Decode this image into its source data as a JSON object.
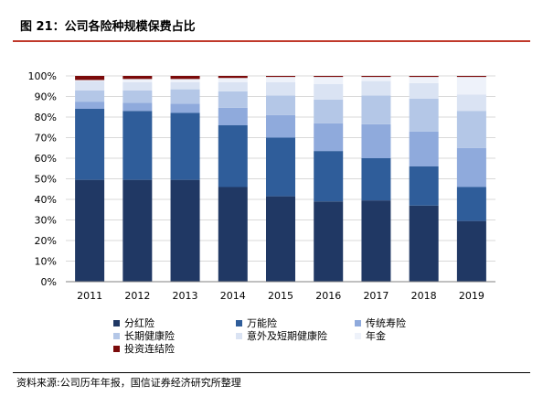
{
  "header": {
    "title": "图 21：公司各险种规模保费占比"
  },
  "source": {
    "text": "资料来源:公司历年年报，国信证券经济研究所整理"
  },
  "colors": {
    "title_rule": "#c0392b",
    "grid": "#d9d9d9",
    "axis": "#808080"
  },
  "chart_data": {
    "type": "bar",
    "stacked": true,
    "categories": [
      "2011",
      "2012",
      "2013",
      "2014",
      "2015",
      "2016",
      "2017",
      "2018",
      "2019"
    ],
    "ylim": [
      0,
      100
    ],
    "yticks": [
      "0%",
      "10%",
      "20%",
      "30%",
      "40%",
      "50%",
      "60%",
      "70%",
      "80%",
      "90%",
      "100%"
    ],
    "grid": true,
    "legend_position": "bottom",
    "series": [
      {
        "name": "分红险",
        "color": "#203864",
        "values": [
          49.5,
          49.5,
          49.5,
          46,
          41.5,
          39,
          39.5,
          37,
          29.5
        ]
      },
      {
        "name": "万能险",
        "color": "#2f5d9a",
        "values": [
          34.5,
          33.5,
          32.5,
          30,
          28.5,
          24.5,
          20.5,
          19,
          16.5
        ]
      },
      {
        "name": "传统寿险",
        "color": "#8faadc",
        "values": [
          3.5,
          4,
          4.5,
          8.5,
          11,
          13.5,
          16.5,
          17,
          19
        ]
      },
      {
        "name": "长期健康险",
        "color": "#b4c7e7",
        "values": [
          5.5,
          6,
          7,
          8,
          9.5,
          11.5,
          14,
          16,
          18
        ]
      },
      {
        "name": "意外及短期健康险",
        "color": "#dae3f3",
        "values": [
          4.5,
          4,
          3.5,
          4.5,
          6.5,
          7.5,
          7,
          7.5,
          8
        ]
      },
      {
        "name": "年金",
        "color": "#eef2fa",
        "values": [
          0.5,
          1.5,
          1.5,
          2,
          2.5,
          3.5,
          2,
          3,
          8.5
        ]
      },
      {
        "name": "投资连结险",
        "color": "#7b0a0a",
        "values": [
          2,
          1.5,
          1.5,
          1,
          0.5,
          0.5,
          0.5,
          0.5,
          0.5
        ]
      }
    ]
  }
}
